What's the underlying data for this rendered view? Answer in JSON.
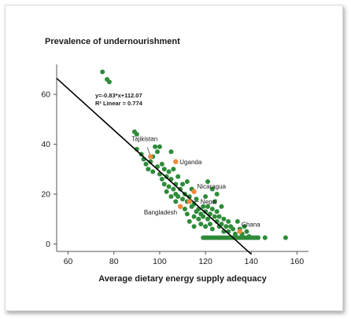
{
  "chart_data": {
    "type": "scatter",
    "title": "Prevalence of undernourishment",
    "xlabel": "Average dietary energy supply adequacy",
    "ylabel": "",
    "xlim": [
      55,
      165
    ],
    "ylim": [
      -3,
      72
    ],
    "xticks": [
      60,
      80,
      100,
      120,
      140,
      160
    ],
    "yticks": [
      0,
      20,
      40,
      60
    ],
    "grid": false,
    "colors": {
      "points": "#2e8b3a",
      "highlight": "#f08a3c",
      "line": "#000000"
    },
    "trendline": {
      "slope": -0.83,
      "intercept": 112.07,
      "x_range": [
        55,
        140
      ],
      "equation": "y=-0.83*x+112.07",
      "r2_label": "R² Linear = 0.774"
    },
    "series": [
      {
        "points": [
          [
            75,
            69
          ],
          [
            77,
            66
          ],
          [
            78,
            65
          ],
          [
            89,
            45
          ],
          [
            90,
            44
          ],
          [
            90,
            38
          ],
          [
            92,
            36
          ],
          [
            93,
            34
          ],
          [
            94,
            32
          ],
          [
            95,
            30
          ],
          [
            96,
            33
          ],
          [
            97,
            29
          ],
          [
            97,
            35
          ],
          [
            98,
            39
          ],
          [
            99,
            37
          ],
          [
            99,
            31
          ],
          [
            100,
            39
          ],
          [
            100,
            28
          ],
          [
            101,
            26
          ],
          [
            101,
            32
          ],
          [
            102,
            24
          ],
          [
            102,
            30
          ],
          [
            103,
            27
          ],
          [
            103,
            21
          ],
          [
            104,
            29
          ],
          [
            104,
            23
          ],
          [
            105,
            37
          ],
          [
            105,
            19
          ],
          [
            105,
            26
          ],
          [
            106,
            30
          ],
          [
            106,
            22
          ],
          [
            107,
            24
          ],
          [
            107,
            17
          ],
          [
            107,
            20
          ],
          [
            108,
            27
          ],
          [
            108,
            19
          ],
          [
            109,
            15
          ],
          [
            109,
            22
          ],
          [
            110,
            18
          ],
          [
            110,
            24
          ],
          [
            111,
            14
          ],
          [
            111,
            20
          ],
          [
            112,
            17
          ],
          [
            112,
            12
          ],
          [
            112,
            25
          ],
          [
            113,
            19
          ],
          [
            113,
            9
          ],
          [
            114,
            15
          ],
          [
            114,
            22
          ],
          [
            115,
            11
          ],
          [
            115,
            16
          ],
          [
            115,
            7
          ],
          [
            116,
            18
          ],
          [
            116,
            13
          ],
          [
            117,
            10
          ],
          [
            117,
            14
          ],
          [
            118,
            12
          ],
          [
            118,
            8
          ],
          [
            119,
            15
          ],
          [
            119,
            11
          ],
          [
            120,
            19
          ],
          [
            120,
            7
          ],
          [
            120,
            13
          ],
          [
            121,
            25
          ],
          [
            121,
            10
          ],
          [
            121,
            15
          ],
          [
            122,
            12
          ],
          [
            122,
            8
          ],
          [
            123,
            22
          ],
          [
            123,
            14
          ],
          [
            123,
            6
          ],
          [
            124,
            11
          ],
          [
            124,
            17
          ],
          [
            125,
            9
          ],
          [
            125,
            20
          ],
          [
            125,
            13
          ],
          [
            126,
            7
          ],
          [
            126,
            11
          ],
          [
            127,
            15
          ],
          [
            127,
            8
          ],
          [
            128,
            10
          ],
          [
            128,
            5
          ],
          [
            129,
            7
          ],
          [
            130,
            9
          ],
          [
            130,
            5
          ],
          [
            131,
            7
          ],
          [
            132,
            6
          ],
          [
            133,
            4
          ],
          [
            134,
            9
          ],
          [
            135,
            6
          ],
          [
            136,
            4
          ],
          [
            137,
            7
          ],
          [
            138,
            5
          ],
          [
            139,
            3
          ],
          [
            119,
            2.5
          ],
          [
            120,
            2.5
          ],
          [
            121,
            2.5
          ],
          [
            122,
            2.5
          ],
          [
            123,
            2.5
          ],
          [
            124,
            2.5
          ],
          [
            125,
            2.5
          ],
          [
            126,
            2.5
          ],
          [
            127,
            2.5
          ],
          [
            128,
            2.5
          ],
          [
            129,
            2.5
          ],
          [
            130,
            2.5
          ],
          [
            131,
            2.5
          ],
          [
            132,
            2.5
          ],
          [
            133,
            2.5
          ],
          [
            134,
            2.5
          ],
          [
            135,
            2.5
          ],
          [
            136,
            2.5
          ],
          [
            137,
            2.5
          ],
          [
            138,
            2.5
          ],
          [
            139,
            2.5
          ],
          [
            140,
            2.5
          ],
          [
            141,
            2.5
          ],
          [
            142,
            2.5
          ],
          [
            143,
            2.5
          ],
          [
            146,
            2.5
          ],
          [
            155,
            2.5
          ]
        ]
      }
    ],
    "highlighted": [
      {
        "label": "Tajikistan",
        "x": 96,
        "y": 35
      },
      {
        "label": "Uganda",
        "x": 107,
        "y": 33
      },
      {
        "label": "Nicaragua",
        "x": 115,
        "y": 21
      },
      {
        "label": "Nepal",
        "x": 113,
        "y": 17
      },
      {
        "label": "Bangladesh",
        "x": 109,
        "y": 15
      },
      {
        "label": "Ghana",
        "x": 135,
        "y": 5
      }
    ]
  }
}
